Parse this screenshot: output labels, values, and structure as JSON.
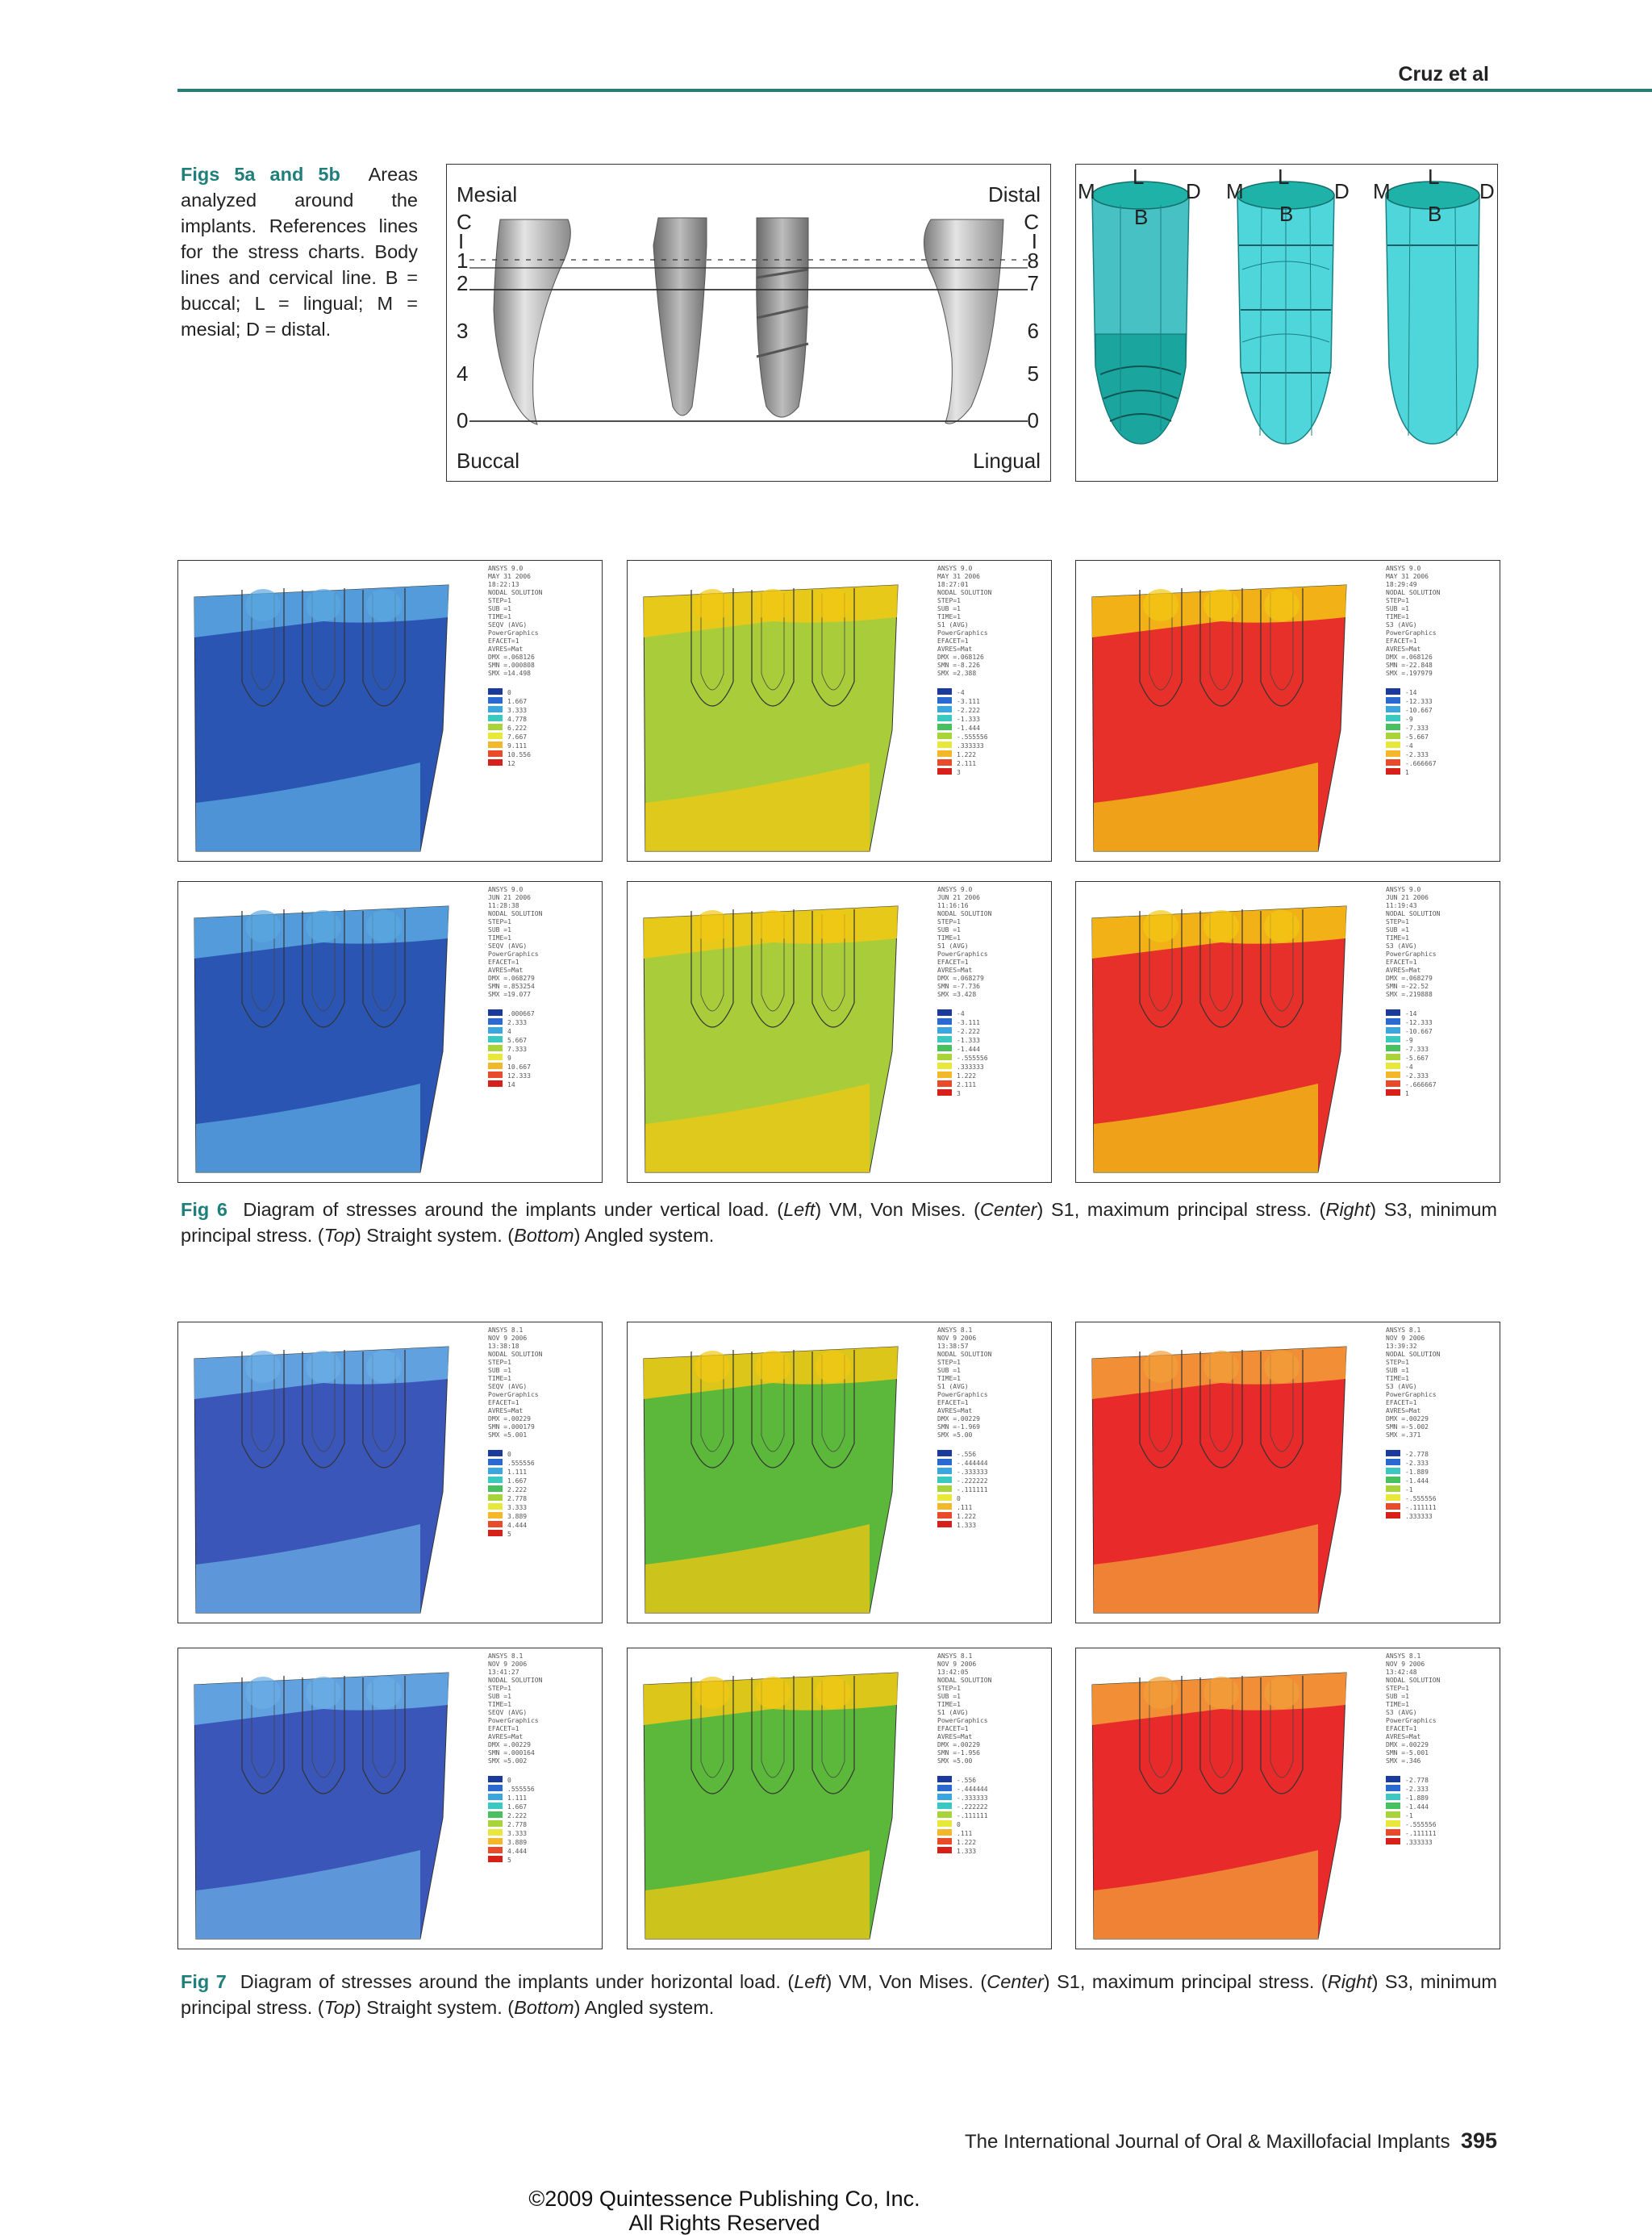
{
  "header": {
    "author": "Cruz et al"
  },
  "fig5": {
    "label": "Figs 5a and 5b",
    "caption": "Areas analyzed around the implants. References lines for the stress charts. Body lines and cervical line. B = buccal; L = lingual; M = mesial; D = distal.",
    "panel_a": {
      "mesial": "Mesial",
      "distal": "Distal",
      "buccal": "Buccal",
      "lingual": "Lingual",
      "left_labels": [
        "C",
        "I",
        "1",
        "2",
        "3",
        "4",
        "0"
      ],
      "right_labels": [
        "C",
        "I",
        "8",
        "7",
        "6",
        "5",
        "0"
      ]
    },
    "panel_b": {
      "L": "L",
      "M": "M",
      "D": "D",
      "B": "B"
    }
  },
  "fig6": {
    "label": "Fig 6",
    "caption_parts": [
      {
        "t": "Diagram of stresses around the implants under vertical load. (",
        "i": false
      },
      {
        "t": "Left",
        "i": true
      },
      {
        "t": ") VM, Von Mises. (",
        "i": false
      },
      {
        "t": "Center",
        "i": true
      },
      {
        "t": ") S1, maximum principal stress. (",
        "i": false
      },
      {
        "t": "Right",
        "i": true
      },
      {
        "t": ") S3, minimum principal stress. (",
        "i": false
      },
      {
        "t": "Top",
        "i": true
      },
      {
        "t": ") Straight system. (",
        "i": false
      },
      {
        "t": "Bottom",
        "i": true
      },
      {
        "t": ") Angled system.",
        "i": false
      }
    ]
  },
  "fig7": {
    "label": "Fig 7",
    "caption_parts": [
      {
        "t": "Diagram of stresses around the implants under horizontal load. (",
        "i": false
      },
      {
        "t": "Left",
        "i": true
      },
      {
        "t": ") VM, Von Mises. (",
        "i": false
      },
      {
        "t": "Center",
        "i": true
      },
      {
        "t": ") S1, maximum principal stress. (",
        "i": false
      },
      {
        "t": "Right",
        "i": true
      },
      {
        "t": ") S3, minimum principal stress. (",
        "i": false
      },
      {
        "t": "Top",
        "i": true
      },
      {
        "t": ") Straight system. (",
        "i": false
      },
      {
        "t": "Bottom",
        "i": true
      },
      {
        "t": ") Angled system.",
        "i": false
      }
    ]
  },
  "stress_panels": [
    {
      "figure": "fig6",
      "row": "top",
      "col": "left",
      "base": "#2a55b3",
      "hot": "#5aa8e0",
      "legend_lines": [
        "ANSYS 9.0",
        "MAY 31 2006",
        "18:22:13",
        "NODAL SOLUTION",
        "STEP=1",
        "SUB =1",
        "TIME=1",
        "SEQV (AVG)",
        "PowerGraphics",
        "EFACET=1",
        "AVRES=Mat",
        "DMX =.068126",
        "SMN =.000808",
        "SMX =14.498"
      ],
      "legend_values": [
        "0",
        "1.667",
        "3.333",
        "4.778",
        "6.222",
        "7.667",
        "9.111",
        "10.556",
        "12"
      ]
    },
    {
      "figure": "fig6",
      "row": "top",
      "col": "center",
      "base": "#a8cc3a",
      "hot": "#f2c814",
      "legend_lines": [
        "ANSYS 9.0",
        "MAY 31 2006",
        "18:27:01",
        "NODAL SOLUTION",
        "STEP=1",
        "SUB =1",
        "TIME=1",
        "S1 (AVG)",
        "PowerGraphics",
        "EFACET=1",
        "AVRES=Mat",
        "DMX =.068126",
        "SMN =-8.226",
        "SMX =2.388"
      ],
      "legend_values": [
        "-4",
        "-3.111",
        "-2.222",
        "-1.333",
        "-1.444",
        "-.555556",
        ".333333",
        "1.222",
        "2.111",
        "3"
      ]
    },
    {
      "figure": "fig6",
      "row": "top",
      "col": "right",
      "base": "#e8302a",
      "hot": "#f2c814",
      "legend_lines": [
        "ANSYS 9.0",
        "MAY 31 2006",
        "18:29:49",
        "NODAL SOLUTION",
        "STEP=1",
        "SUB =1",
        "TIME=1",
        "S3 (AVG)",
        "PowerGraphics",
        "EFACET=1",
        "AVRES=Mat",
        "DMX =.068126",
        "SMN =-22.848",
        "SMX =.197979"
      ],
      "legend_values": [
        "-14",
        "-12.333",
        "-10.667",
        "-9",
        "-7.333",
        "-5.667",
        "-4",
        "-2.333",
        "-.666667",
        "1"
      ]
    },
    {
      "figure": "fig6",
      "row": "bottom",
      "col": "left",
      "base": "#2a55b3",
      "hot": "#5aa8e0",
      "legend_lines": [
        "ANSYS 9.0",
        "JUN 21 2006",
        "11:28:38",
        "NODAL SOLUTION",
        "STEP=1",
        "SUB =1",
        "TIME=1",
        "SEQV (AVG)",
        "PowerGraphics",
        "EFACET=1",
        "AVRES=Mat",
        "DMX =.068279",
        "SMN =.853254",
        "SMX =19.077"
      ],
      "legend_values": [
        ".000667",
        "2.333",
        "4",
        "5.667",
        "7.333",
        "9",
        "10.667",
        "12.333",
        "14"
      ]
    },
    {
      "figure": "fig6",
      "row": "bottom",
      "col": "center",
      "base": "#a8cc3a",
      "hot": "#f2c814",
      "legend_lines": [
        "ANSYS 9.0",
        "JUN 21 2006",
        "11:16:16",
        "NODAL SOLUTION",
        "STEP=1",
        "SUB =1",
        "TIME=1",
        "S1 (AVG)",
        "PowerGraphics",
        "EFACET=1",
        "AVRES=Mat",
        "DMX =.068279",
        "SMN =-7.736",
        "SMX =3.428"
      ],
      "legend_values": [
        "-4",
        "-3.111",
        "-2.222",
        "-1.333",
        "-1.444",
        "-.555556",
        ".333333",
        "1.222",
        "2.111",
        "3"
      ]
    },
    {
      "figure": "fig6",
      "row": "bottom",
      "col": "right",
      "base": "#e8302a",
      "hot": "#f2c814",
      "legend_lines": [
        "ANSYS 9.0",
        "JUN 21 2006",
        "11:19:43",
        "NODAL SOLUTION",
        "STEP=1",
        "SUB =1",
        "TIME=1",
        "S3 (AVG)",
        "PowerGraphics",
        "EFACET=1",
        "AVRES=Mat",
        "DMX =.068279",
        "SMN =-22.52",
        "SMX =.219888"
      ],
      "legend_values": [
        "-14",
        "-12.333",
        "-10.667",
        "-9",
        "-7.333",
        "-5.667",
        "-4",
        "-2.333",
        "-.666667",
        "1"
      ]
    },
    {
      "figure": "fig7",
      "row": "top",
      "col": "left",
      "base": "#3a56b8",
      "hot": "#6aaee6",
      "legend_lines": [
        "ANSYS 8.1",
        "NOV 9 2006",
        "13:38:18",
        "NODAL SOLUTION",
        "STEP=1",
        "SUB =1",
        "TIME=1",
        "SEQV (AVG)",
        "PowerGraphics",
        "EFACET=1",
        "AVRES=Mat",
        "DMX =.00229",
        "SMN =.000179",
        "SMX =5.001"
      ],
      "legend_values": [
        "0",
        ".555556",
        "1.111",
        "1.667",
        "2.222",
        "2.778",
        "3.333",
        "3.889",
        "4.444",
        "5"
      ]
    },
    {
      "figure": "fig7",
      "row": "top",
      "col": "center",
      "base": "#5cb83a",
      "hot": "#f2c814",
      "legend_lines": [
        "ANSYS 8.1",
        "NOV 9 2006",
        "13:38:57",
        "NODAL SOLUTION",
        "STEP=1",
        "SUB =1",
        "TIME=1",
        "S1 (AVG)",
        "PowerGraphics",
        "EFACET=1",
        "AVRES=Mat",
        "DMX =.00229",
        "SMN =-1.969",
        "SMX =5.00"
      ],
      "legend_values": [
        "-.556",
        "-.444444",
        "-.333333",
        "-.222222",
        "-.111111",
        "0",
        ".111",
        "1.222",
        "1.333"
      ]
    },
    {
      "figure": "fig7",
      "row": "top",
      "col": "right",
      "base": "#e82a2a",
      "hot": "#f2a038",
      "legend_lines": [
        "ANSYS 8.1",
        "NOV 9 2006",
        "13:39:32",
        "NODAL SOLUTION",
        "STEP=1",
        "SUB =1",
        "TIME=1",
        "S3 (AVG)",
        "PowerGraphics",
        "EFACET=1",
        "AVRES=Mat",
        "DMX =.00229",
        "SMN =-5.002",
        "SMX =.371"
      ],
      "legend_values": [
        "-2.778",
        "-2.333",
        "-1.889",
        "-1.444",
        "-1",
        "-.555556",
        "-.111111",
        ".333333"
      ]
    },
    {
      "figure": "fig7",
      "row": "bottom",
      "col": "left",
      "base": "#3a56b8",
      "hot": "#6aaee6",
      "legend_lines": [
        "ANSYS 8.1",
        "NOV 9 2006",
        "13:41:27",
        "NODAL SOLUTION",
        "STEP=1",
        "SUB =1",
        "TIME=1",
        "SEQV (AVG)",
        "PowerGraphics",
        "EFACET=1",
        "AVRES=Mat",
        "DMX =.00229",
        "SMN =.000164",
        "SMX =5.002"
      ],
      "legend_values": [
        "0",
        ".555556",
        "1.111",
        "1.667",
        "2.222",
        "2.778",
        "3.333",
        "3.889",
        "4.444",
        "5"
      ]
    },
    {
      "figure": "fig7",
      "row": "bottom",
      "col": "center",
      "base": "#5cb83a",
      "hot": "#f2c814",
      "legend_lines": [
        "ANSYS 8.1",
        "NOV 9 2006",
        "13:42:05",
        "NODAL SOLUTION",
        "STEP=1",
        "SUB =1",
        "TIME=1",
        "S1 (AVG)",
        "PowerGraphics",
        "EFACET=1",
        "AVRES=Mat",
        "DMX =.00229",
        "SMN =-1.956",
        "SMX =5.00"
      ],
      "legend_values": [
        "-.556",
        "-.444444",
        "-.333333",
        "-.222222",
        "-.111111",
        "0",
        ".111",
        "1.222",
        "1.333"
      ]
    },
    {
      "figure": "fig7",
      "row": "bottom",
      "col": "right",
      "base": "#e82a2a",
      "hot": "#f2a038",
      "legend_lines": [
        "ANSYS 8.1",
        "NOV 9 2006",
        "13:42:48",
        "NODAL SOLUTION",
        "STEP=1",
        "SUB =1",
        "TIME=1",
        "S3 (AVG)",
        "PowerGraphics",
        "EFACET=1",
        "AVRES=Mat",
        "DMX =.00229",
        "SMN =-5.001",
        "SMX =.346"
      ],
      "legend_values": [
        "-2.778",
        "-2.333",
        "-1.889",
        "-1.444",
        "-1",
        "-.555556",
        "-.111111",
        ".333333"
      ]
    }
  ],
  "footer": {
    "journal": "The International Journal of Oral & Maxillofacial Implants",
    "page": "395",
    "copyright_1": "©2009 Quintessence Publishing Co, Inc.",
    "copyright_2": "All Rights Reserved"
  }
}
